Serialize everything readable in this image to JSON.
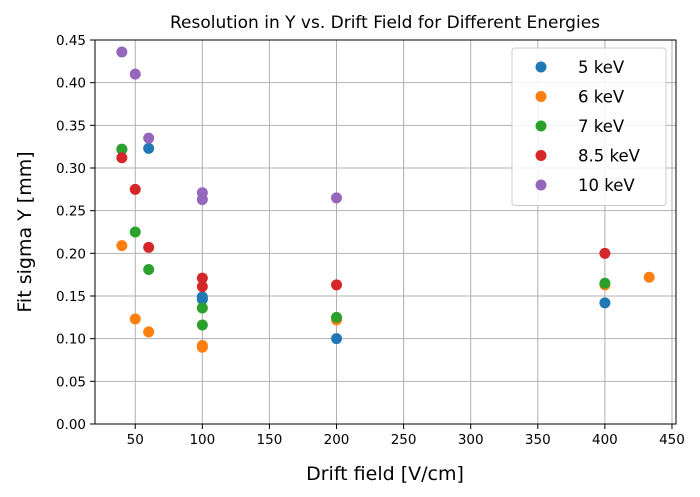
{
  "chart_data": {
    "type": "scatter",
    "title": "Resolution in Y vs. Drift Field for Different Energies",
    "xlabel": "Drift field [V/cm]",
    "ylabel": "Fit sigma Y [mm]",
    "xlim": [
      20,
      453
    ],
    "ylim": [
      0,
      0.45
    ],
    "xticks": [
      50,
      100,
      150,
      200,
      250,
      300,
      350,
      400,
      450
    ],
    "xtick_labels": [
      "50",
      "100",
      "150",
      "200",
      "250",
      "300",
      "350",
      "400",
      "450"
    ],
    "yticks": [
      0.0,
      0.05,
      0.1,
      0.15,
      0.2,
      0.25,
      0.3,
      0.35,
      0.4,
      0.45
    ],
    "ytick_labels": [
      "0.00",
      "0.05",
      "0.10",
      "0.15",
      "0.20",
      "0.25",
      "0.30",
      "0.35",
      "0.40",
      "0.45"
    ],
    "grid": true,
    "legend_position": "top-right",
    "series": [
      {
        "name": "5 keV",
        "color": "#1f77b4",
        "points": [
          {
            "x": 40,
            "y": 0.322
          },
          {
            "x": 60,
            "y": 0.323
          },
          {
            "x": 100,
            "y": 0.146
          },
          {
            "x": 100,
            "y": 0.149
          },
          {
            "x": 200,
            "y": 0.1
          },
          {
            "x": 400,
            "y": 0.142
          }
        ]
      },
      {
        "name": "6 keV",
        "color": "#ff7f0e",
        "points": [
          {
            "x": 40,
            "y": 0.209
          },
          {
            "x": 50,
            "y": 0.123
          },
          {
            "x": 60,
            "y": 0.108
          },
          {
            "x": 100,
            "y": 0.09
          },
          {
            "x": 100,
            "y": 0.092
          },
          {
            "x": 200,
            "y": 0.122
          },
          {
            "x": 400,
            "y": 0.163
          },
          {
            "x": 433,
            "y": 0.172
          }
        ]
      },
      {
        "name": "7 keV",
        "color": "#2ca02c",
        "points": [
          {
            "x": 40,
            "y": 0.322
          },
          {
            "x": 50,
            "y": 0.225
          },
          {
            "x": 60,
            "y": 0.181
          },
          {
            "x": 100,
            "y": 0.136
          },
          {
            "x": 100,
            "y": 0.116
          },
          {
            "x": 200,
            "y": 0.125
          },
          {
            "x": 400,
            "y": 0.165
          }
        ]
      },
      {
        "name": "8.5 keV",
        "color": "#d62728",
        "points": [
          {
            "x": 40,
            "y": 0.312
          },
          {
            "x": 50,
            "y": 0.275
          },
          {
            "x": 60,
            "y": 0.207
          },
          {
            "x": 100,
            "y": 0.171
          },
          {
            "x": 100,
            "y": 0.161
          },
          {
            "x": 200,
            "y": 0.163
          },
          {
            "x": 400,
            "y": 0.2
          }
        ]
      },
      {
        "name": "10 keV",
        "color": "#9467bd",
        "points": [
          {
            "x": 40,
            "y": 0.436
          },
          {
            "x": 50,
            "y": 0.41
          },
          {
            "x": 60,
            "y": 0.335
          },
          {
            "x": 100,
            "y": 0.271
          },
          {
            "x": 100,
            "y": 0.263
          },
          {
            "x": 200,
            "y": 0.265
          }
        ]
      }
    ]
  }
}
